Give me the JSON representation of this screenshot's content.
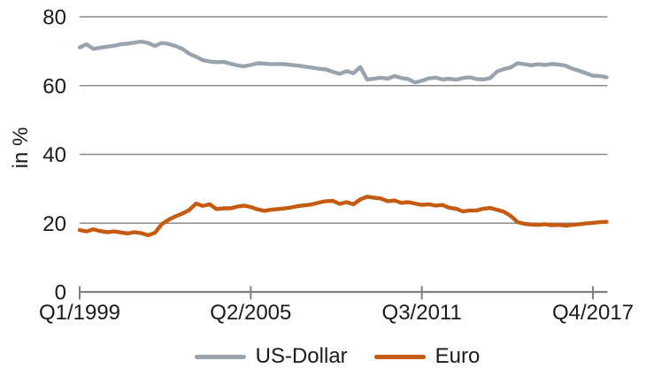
{
  "chart_data": {
    "type": "line",
    "title": "",
    "ylabel": "in %",
    "xlabel": "",
    "ylim": [
      0,
      80
    ],
    "yticks": [
      0,
      20,
      40,
      60,
      80
    ],
    "grid": "horizontal-gridlines-at-20-40-60-80",
    "legend_position": "bottom-center",
    "x_interval": "quarter",
    "x_start": "Q1/1999",
    "x_end": "Q2/2018",
    "xtick_positions": [
      0,
      25,
      50,
      75
    ],
    "xticklabels": [
      "Q1/1999",
      "Q2/2005",
      "Q3/2011",
      "Q4/2017"
    ],
    "series": [
      {
        "name": "US-Dollar",
        "color": "#99A3AD",
        "values": [
          71.1,
          72.0,
          70.7,
          71.0,
          71.3,
          71.6,
          72.0,
          72.2,
          72.5,
          72.8,
          72.4,
          71.5,
          72.4,
          72.1,
          71.5,
          70.7,
          69.3,
          68.4,
          67.4,
          67.0,
          66.8,
          66.9,
          66.4,
          65.9,
          65.6,
          66.0,
          66.5,
          66.4,
          66.2,
          66.3,
          66.2,
          66.0,
          65.8,
          65.5,
          65.2,
          64.9,
          64.7,
          64.0,
          63.4,
          64.2,
          63.6,
          65.4,
          61.8,
          62.0,
          62.3,
          62.0,
          62.8,
          62.2,
          61.9,
          60.9,
          61.4,
          62.1,
          62.3,
          61.8,
          62.0,
          61.7,
          62.2,
          62.4,
          61.9,
          61.8,
          62.2,
          64.1,
          64.8,
          65.3,
          66.5,
          66.2,
          65.9,
          66.2,
          66.0,
          66.3,
          66.1,
          65.8,
          64.9,
          64.3,
          63.6,
          62.9,
          62.8,
          62.4
        ]
      },
      {
        "name": "Euro",
        "color": "#C55A11",
        "values": [
          18.0,
          17.6,
          18.2,
          17.7,
          17.4,
          17.6,
          17.3,
          17.0,
          17.4,
          17.1,
          16.5,
          17.2,
          19.7,
          21.0,
          22.0,
          22.8,
          23.8,
          25.7,
          25.0,
          25.5,
          24.1,
          24.3,
          24.3,
          24.8,
          25.1,
          24.7,
          24.0,
          23.6,
          23.9,
          24.1,
          24.3,
          24.6,
          25.0,
          25.2,
          25.5,
          26.0,
          26.4,
          26.5,
          25.6,
          26.1,
          25.5,
          26.9,
          27.7,
          27.4,
          27.2,
          26.4,
          26.6,
          25.9,
          26.1,
          25.7,
          25.3,
          25.5,
          25.1,
          25.3,
          24.5,
          24.2,
          23.4,
          23.7,
          23.7,
          24.2,
          24.4,
          23.9,
          23.3,
          22.1,
          20.3,
          19.8,
          19.6,
          19.5,
          19.7,
          19.4,
          19.5,
          19.3,
          19.5,
          19.7,
          19.9,
          20.1,
          20.3,
          20.4
        ]
      }
    ],
    "colors": {
      "gridline": "#8C8C8C",
      "axis": "#808080",
      "text": "#1A1A1A",
      "background": "#FFFFFF"
    }
  }
}
